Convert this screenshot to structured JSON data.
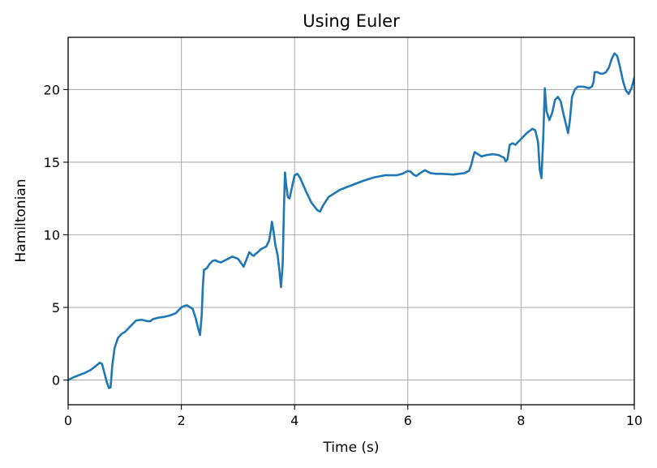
{
  "chart_data": {
    "type": "line",
    "title": "Using Euler",
    "xlabel": "Time (s)",
    "ylabel": "Hamiltonian",
    "xlim": [
      0,
      10
    ],
    "ylim": [
      -1.7,
      23.6
    ],
    "x_ticks": [
      0,
      2,
      4,
      6,
      8,
      10
    ],
    "y_ticks": [
      0,
      5,
      10,
      15,
      20
    ],
    "grid": true,
    "colors": {
      "line": "#1f77b4",
      "grid": "#b0b0b0",
      "axes": "#000000"
    },
    "series": [
      {
        "x": [
          0,
          0.1,
          0.2,
          0.3,
          0.4,
          0.5,
          0.56,
          0.6,
          0.64,
          0.68,
          0.72,
          0.75,
          0.78,
          0.82,
          0.88,
          0.95,
          1.0,
          1.1,
          1.2,
          1.3,
          1.4,
          1.45,
          1.5,
          1.6,
          1.7,
          1.8,
          1.9,
          2.0,
          2.05,
          2.1,
          2.2,
          2.25,
          2.3,
          2.33,
          2.36,
          2.38,
          2.4,
          2.45,
          2.5,
          2.55,
          2.6,
          2.65,
          2.7,
          2.8,
          2.9,
          3.0,
          3.1,
          3.2,
          3.23,
          3.25,
          3.28,
          3.3,
          3.35,
          3.4,
          3.45,
          3.5,
          3.55,
          3.58,
          3.6,
          3.63,
          3.66,
          3.7,
          3.73,
          3.76,
          3.79,
          3.81,
          3.83,
          3.85,
          3.88,
          3.91,
          3.95,
          4.0,
          4.05,
          4.1,
          4.2,
          4.3,
          4.4,
          4.45,
          4.5,
          4.6,
          4.8,
          5.0,
          5.2,
          5.4,
          5.6,
          5.8,
          5.9,
          6.0,
          6.05,
          6.1,
          6.15,
          6.2,
          6.3,
          6.4,
          6.5,
          6.6,
          6.8,
          7.0,
          7.08,
          7.12,
          7.15,
          7.18,
          7.22,
          7.3,
          7.4,
          7.5,
          7.6,
          7.7,
          7.73,
          7.76,
          7.8,
          7.85,
          7.9,
          8.0,
          8.1,
          8.2,
          8.25,
          8.3,
          8.33,
          8.36,
          8.39,
          8.42,
          8.45,
          8.5,
          8.55,
          8.6,
          8.65,
          8.7,
          8.75,
          8.8,
          8.83,
          8.86,
          8.9,
          8.95,
          9.0,
          9.1,
          9.2,
          9.25,
          9.28,
          9.3,
          9.35,
          9.4,
          9.45,
          9.5,
          9.55,
          9.6,
          9.65,
          9.7,
          9.75,
          9.8,
          9.85,
          9.9,
          9.95,
          10.0
        ],
        "y": [
          0.0,
          0.2,
          0.35,
          0.5,
          0.7,
          1.0,
          1.2,
          1.1,
          0.5,
          -0.1,
          -0.55,
          -0.5,
          1.0,
          2.2,
          2.9,
          3.2,
          3.3,
          3.7,
          4.1,
          4.15,
          4.05,
          4.05,
          4.2,
          4.3,
          4.35,
          4.45,
          4.6,
          5.0,
          5.1,
          5.15,
          4.9,
          4.3,
          3.5,
          3.1,
          4.5,
          6.5,
          7.6,
          7.7,
          8.0,
          8.2,
          8.25,
          8.15,
          8.1,
          8.3,
          8.5,
          8.35,
          7.8,
          8.8,
          8.7,
          8.6,
          8.55,
          8.65,
          8.8,
          9.0,
          9.1,
          9.2,
          9.6,
          10.3,
          10.9,
          10.2,
          9.3,
          8.6,
          7.6,
          6.4,
          8.0,
          11.5,
          14.3,
          13.5,
          12.6,
          12.5,
          13.2,
          14.1,
          14.2,
          13.9,
          13.0,
          12.2,
          11.7,
          11.6,
          12.0,
          12.6,
          13.1,
          13.4,
          13.7,
          13.95,
          14.1,
          14.1,
          14.2,
          14.4,
          14.35,
          14.15,
          14.05,
          14.2,
          14.45,
          14.25,
          14.2,
          14.2,
          14.15,
          14.25,
          14.4,
          14.8,
          15.3,
          15.7,
          15.6,
          15.4,
          15.5,
          15.55,
          15.5,
          15.3,
          15.05,
          15.2,
          16.2,
          16.3,
          16.2,
          16.6,
          17.0,
          17.3,
          17.2,
          16.4,
          14.5,
          13.9,
          16.5,
          20.1,
          18.5,
          17.9,
          18.4,
          19.3,
          19.5,
          19.2,
          18.3,
          17.5,
          17.0,
          17.8,
          19.5,
          20.0,
          20.2,
          20.2,
          20.1,
          20.2,
          20.5,
          21.2,
          21.2,
          21.1,
          21.1,
          21.2,
          21.5,
          22.1,
          22.5,
          22.3,
          21.5,
          20.6,
          19.95,
          19.7,
          20.1,
          20.8
        ]
      }
    ]
  }
}
